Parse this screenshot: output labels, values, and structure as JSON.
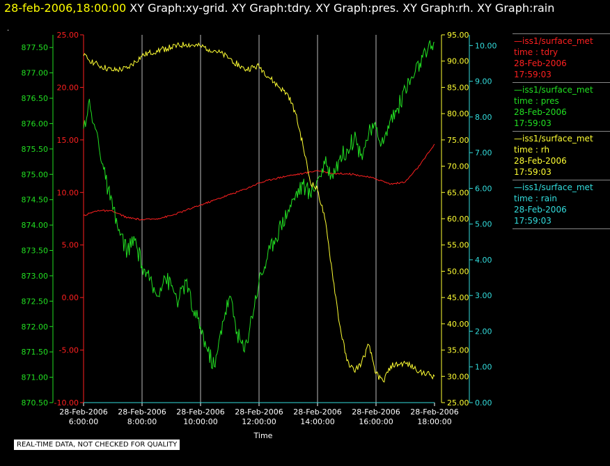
{
  "header": {
    "datetime": "28-feb-2006,18:00:00",
    "graphs": "XY Graph:xy-grid.  XY Graph:tdry.  XY Graph:pres.  XY Graph:rh.  XY Graph:rain"
  },
  "marker": ".",
  "footer": "REAL-TIME DATA, NOT CHECKED FOR QUALITY",
  "legend": [
    {
      "name": "—iss1/surface_met",
      "var": "time : tdry",
      "date": "28-Feb-2006",
      "time": "17:59:03",
      "color": "#ff2020"
    },
    {
      "name": "—iss1/surface_met",
      "var": "time : pres",
      "date": "28-Feb-2006",
      "time": "17:59:03",
      "color": "#22e022"
    },
    {
      "name": "—iss1/surface_met",
      "var": "time : rh",
      "date": "28-Feb-2006",
      "time": "17:59:03",
      "color": "#ffff33"
    },
    {
      "name": "—iss1/surface_met",
      "var": "time : rain",
      "date": "28-Feb-2006",
      "time": "17:59:03",
      "color": "#33dddd"
    }
  ],
  "chart_data": {
    "type": "line",
    "xlabel": "Time",
    "x_range": [
      "06:00",
      "18:00"
    ],
    "x_ticks": [
      {
        "date": "28-Feb-2006",
        "time": "6:00:00"
      },
      {
        "date": "28-Feb-2006",
        "time": "8:00:00"
      },
      {
        "date": "28-Feb-2006",
        "time": "10:00:00"
      },
      {
        "date": "28-Feb-2006",
        "time": "12:00:00"
      },
      {
        "date": "28-Feb-2006",
        "time": "14:00:00"
      },
      {
        "date": "28-Feb-2006",
        "time": "16:00:00"
      },
      {
        "date": "28-Feb-2006",
        "time": "18:00:00"
      }
    ],
    "axes": [
      {
        "series": "tdry",
        "color": "#ff2020",
        "side": "left",
        "ylim": [
          -10,
          25
        ],
        "ticks": [
          "-10.00",
          "-5.00",
          "0.00",
          "5.00",
          "10.00",
          "15.00",
          "20.00",
          "25.00"
        ]
      },
      {
        "series": "pres",
        "color": "#22e022",
        "side": "left",
        "ylim": [
          870.5,
          877.75
        ],
        "ticks": [
          "870.50",
          "871.00",
          "871.50",
          "872.00",
          "872.50",
          "873.00",
          "873.50",
          "874.00",
          "874.50",
          "875.00",
          "875.50",
          "876.00",
          "876.50",
          "877.00",
          "877.50"
        ]
      },
      {
        "series": "rh",
        "color": "#ffff33",
        "side": "right",
        "ylim": [
          25,
          95
        ],
        "ticks": [
          "25.00",
          "30.00",
          "35.00",
          "40.00",
          "45.00",
          "50.00",
          "55.00",
          "60.00",
          "65.00",
          "70.00",
          "75.00",
          "80.00",
          "85.00",
          "90.00",
          "95.00"
        ]
      },
      {
        "series": "rain",
        "color": "#33dddd",
        "side": "right",
        "ylim": [
          0,
          10.3
        ],
        "ticks": [
          "0.00",
          "1.00",
          "2.00",
          "3.00",
          "4.00",
          "5.00",
          "6.00",
          "7.00",
          "8.00",
          "9.00",
          "10.00"
        ]
      }
    ],
    "grid": "vertical",
    "legend_position": "right",
    "series": [
      {
        "name": "tdry",
        "color": "#ff2020",
        "x": [
          "06:00",
          "06:30",
          "07:00",
          "07:30",
          "08:00",
          "08:30",
          "09:00",
          "09:30",
          "10:00",
          "10:30",
          "11:00",
          "11:30",
          "12:00",
          "12:30",
          "13:00",
          "13:30",
          "14:00",
          "14:30",
          "15:00",
          "15:30",
          "16:00",
          "16:30",
          "17:00",
          "17:30",
          "18:00"
        ],
        "y": [
          7.8,
          8.3,
          8.2,
          7.6,
          7.4,
          7.5,
          7.8,
          8.3,
          8.8,
          9.3,
          9.8,
          10.3,
          10.9,
          11.3,
          11.6,
          11.8,
          12.1,
          11.8,
          11.8,
          11.6,
          11.3,
          10.8,
          11.0,
          12.6,
          14.6
        ]
      },
      {
        "name": "pres",
        "color": "#22e022",
        "x": [
          "06:00",
          "06:10",
          "06:20",
          "06:30",
          "06:45",
          "07:00",
          "07:15",
          "07:30",
          "07:45",
          "08:00",
          "08:15",
          "08:30",
          "08:45",
          "09:00",
          "09:15",
          "09:30",
          "09:45",
          "10:00",
          "10:15",
          "10:30",
          "10:45",
          "11:00",
          "11:15",
          "11:30",
          "11:45",
          "12:00",
          "12:15",
          "12:30",
          "12:45",
          "13:00",
          "13:15",
          "13:30",
          "13:45",
          "14:00",
          "14:15",
          "14:30",
          "14:45",
          "15:00",
          "15:15",
          "15:30",
          "15:45",
          "16:00",
          "16:15",
          "16:30",
          "16:45",
          "17:00",
          "17:15",
          "17:30",
          "17:45",
          "18:00"
        ],
        "y": [
          875.9,
          876.4,
          876.0,
          875.7,
          874.9,
          874.3,
          873.8,
          873.5,
          873.7,
          873.2,
          872.9,
          872.6,
          873.0,
          872.8,
          872.5,
          872.9,
          872.3,
          872.0,
          871.5,
          871.2,
          872.1,
          872.6,
          871.9,
          871.5,
          872.2,
          872.9,
          873.3,
          873.7,
          874.0,
          874.3,
          874.6,
          874.8,
          874.6,
          874.9,
          875.2,
          875.0,
          875.3,
          875.5,
          875.7,
          875.4,
          875.8,
          875.9,
          875.6,
          876.1,
          876.3,
          876.7,
          876.9,
          877.2,
          877.4,
          877.6
        ]
      },
      {
        "name": "rh",
        "color": "#ffff33",
        "x": [
          "06:00",
          "06:30",
          "07:00",
          "07:30",
          "08:00",
          "08:30",
          "09:00",
          "09:30",
          "10:00",
          "10:30",
          "11:00",
          "11:30",
          "12:00",
          "12:30",
          "13:00",
          "13:15",
          "13:30",
          "13:45",
          "14:00",
          "14:15",
          "14:30",
          "14:45",
          "15:00",
          "15:15",
          "15:30",
          "15:45",
          "16:00",
          "16:15",
          "16:30",
          "17:00",
          "17:30",
          "18:00"
        ],
        "y": [
          91.0,
          89.2,
          88.2,
          88.6,
          91.0,
          92.0,
          92.6,
          93.2,
          92.8,
          92.0,
          90.5,
          88.4,
          89.0,
          86.0,
          83.5,
          80.0,
          74.0,
          67.0,
          65.5,
          60.0,
          50.0,
          40.0,
          33.0,
          31.0,
          32.5,
          36.0,
          30.5,
          29.0,
          32.0,
          32.5,
          31.0,
          30.0
        ]
      },
      {
        "name": "rain",
        "color": "#33dddd",
        "x": [
          "06:00",
          "18:00"
        ],
        "y": [
          0.0,
          0.0
        ]
      }
    ]
  }
}
